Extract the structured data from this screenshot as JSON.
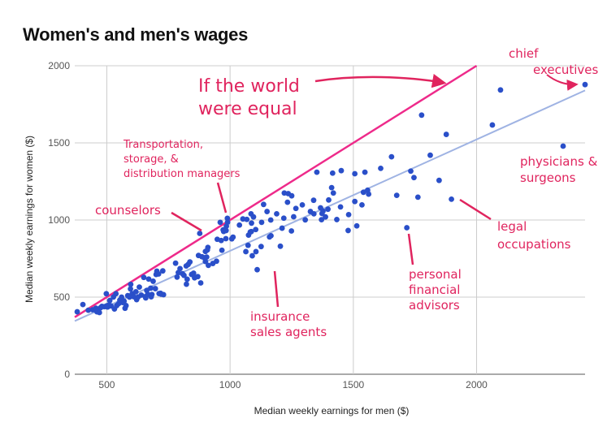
{
  "chart_data": {
    "type": "scatter",
    "title": "Women's and men's wages",
    "xlabel": "Median weekly earnings for men ($)",
    "ylabel": "Median weekly earnings for women ($)",
    "xlim": [
      370,
      2440
    ],
    "ylim": [
      0,
      2000
    ],
    "x_ticks": [
      "500",
      "1000",
      "1500",
      "2000"
    ],
    "y_ticks": [
      "0",
      "500",
      "1000",
      "1500",
      "2000"
    ],
    "grid": true,
    "equal_line": {
      "x": [
        370,
        2000
      ],
      "y": [
        370,
        2000
      ]
    },
    "trend_line": {
      "x": [
        370,
        2440
      ],
      "y": [
        345,
        1840
      ]
    },
    "series": [
      {
        "name": "",
        "color": "#2a4fc9",
        "points": [
          [
            380,
            405
          ],
          [
            403,
            452
          ],
          [
            425,
            415
          ],
          [
            443,
            418
          ],
          [
            456,
            428
          ],
          [
            460,
            405
          ],
          [
            463,
            418
          ],
          [
            470,
            400
          ],
          [
            475,
            432
          ],
          [
            480,
            440
          ],
          [
            490,
            438
          ],
          [
            498,
            522
          ],
          [
            500,
            444
          ],
          [
            503,
            436
          ],
          [
            509,
            449
          ],
          [
            512,
            478
          ],
          [
            517,
            443
          ],
          [
            527,
            501
          ],
          [
            531,
            423
          ],
          [
            537,
            522
          ],
          [
            540,
            445
          ],
          [
            548,
            458
          ],
          [
            553,
            481
          ],
          [
            557,
            470
          ],
          [
            560,
            500
          ],
          [
            564,
            465
          ],
          [
            570,
            474
          ],
          [
            574,
            428
          ],
          [
            578,
            445
          ],
          [
            585,
            510
          ],
          [
            592,
            500
          ],
          [
            596,
            553
          ],
          [
            597,
            583
          ],
          [
            603,
            522
          ],
          [
            609,
            503
          ],
          [
            618,
            535
          ],
          [
            621,
            484
          ],
          [
            627,
            501
          ],
          [
            632,
            565
          ],
          [
            640,
            513
          ],
          [
            650,
            628
          ],
          [
            656,
            503
          ],
          [
            658,
            495
          ],
          [
            662,
            543
          ],
          [
            666,
            518
          ],
          [
            670,
            617
          ],
          [
            678,
            558
          ],
          [
            680,
            502
          ],
          [
            683,
            517
          ],
          [
            688,
            603
          ],
          [
            697,
            555
          ],
          [
            700,
            647
          ],
          [
            703,
            668
          ],
          [
            710,
            650
          ],
          [
            712,
            523
          ],
          [
            718,
            525
          ],
          [
            720,
            519
          ],
          [
            727,
            670
          ],
          [
            730,
            516
          ],
          [
            779,
            720
          ],
          [
            785,
            630
          ],
          [
            790,
            659
          ],
          [
            797,
            685
          ],
          [
            807,
            652
          ],
          [
            813,
            641
          ],
          [
            822,
            702
          ],
          [
            823,
            584
          ],
          [
            826,
            616
          ],
          [
            830,
            712
          ],
          [
            837,
            728
          ],
          [
            844,
            647
          ],
          [
            852,
            655
          ],
          [
            856,
            625
          ],
          [
            869,
            633
          ],
          [
            872,
            770
          ],
          [
            877,
            913
          ],
          [
            881,
            592
          ],
          [
            886,
            762
          ],
          [
            896,
            755
          ],
          [
            900,
            731
          ],
          [
            900,
            796
          ],
          [
            905,
            760
          ],
          [
            908,
            806
          ],
          [
            910,
            822
          ],
          [
            912,
            706
          ],
          [
            930,
            718
          ],
          [
            945,
            733
          ],
          [
            948,
            875
          ],
          [
            960,
            985
          ],
          [
            964,
            867
          ],
          [
            967,
            804
          ],
          [
            972,
            936
          ],
          [
            974,
            926
          ],
          [
            983,
            879
          ],
          [
            984,
            932
          ],
          [
            985,
            960
          ],
          [
            989,
            1011
          ],
          [
            990,
            986
          ],
          [
            1007,
            878
          ],
          [
            1012,
            889
          ],
          [
            1038,
            967
          ],
          [
            1052,
            1007
          ],
          [
            1064,
            795
          ],
          [
            1068,
            1004
          ],
          [
            1073,
            836
          ],
          [
            1075,
            902
          ],
          [
            1082,
            922
          ],
          [
            1085,
            1040
          ],
          [
            1086,
            925
          ],
          [
            1087,
            980
          ],
          [
            1090,
            768
          ],
          [
            1095,
            1020
          ],
          [
            1104,
            938
          ],
          [
            1105,
            795
          ],
          [
            1110,
            678
          ],
          [
            1126,
            828
          ],
          [
            1128,
            985
          ],
          [
            1136,
            1101
          ],
          [
            1150,
            1055
          ],
          [
            1160,
            890
          ],
          [
            1165,
            1000
          ],
          [
            1166,
            898
          ],
          [
            1189,
            1040
          ],
          [
            1204,
            830
          ],
          [
            1211,
            947
          ],
          [
            1218,
            1012
          ],
          [
            1220,
            1175
          ],
          [
            1233,
            1115
          ],
          [
            1236,
            1171
          ],
          [
            1249,
            929
          ],
          [
            1250,
            1157
          ],
          [
            1258,
            1021
          ],
          [
            1267,
            1075
          ],
          [
            1293,
            1098
          ],
          [
            1305,
            1001
          ],
          [
            1326,
            1055
          ],
          [
            1339,
            1128
          ],
          [
            1340,
            1040
          ],
          [
            1352,
            1310
          ],
          [
            1367,
            1079
          ],
          [
            1371,
            1002
          ],
          [
            1373,
            1042
          ],
          [
            1377,
            1058
          ],
          [
            1387,
            1020
          ],
          [
            1397,
            1070
          ],
          [
            1400,
            1130
          ],
          [
            1412,
            1210
          ],
          [
            1416,
            1304
          ],
          [
            1419,
            1175
          ],
          [
            1433,
            1003
          ],
          [
            1448,
            1085
          ],
          [
            1451,
            1320
          ],
          [
            1479,
            932
          ],
          [
            1481,
            1035
          ],
          [
            1506,
            1120
          ],
          [
            1506,
            1300
          ],
          [
            1514,
            962
          ],
          [
            1535,
            1098
          ],
          [
            1541,
            1180
          ],
          [
            1547,
            1310
          ],
          [
            1558,
            1193
          ],
          [
            1562,
            1168
          ],
          [
            1611,
            1335
          ],
          [
            1655,
            1410
          ],
          [
            1676,
            1160
          ],
          [
            1717,
            950
          ],
          [
            1733,
            1317
          ],
          [
            1746,
            1275
          ],
          [
            1762,
            1148
          ],
          [
            1777,
            1680
          ],
          [
            1812,
            1420
          ],
          [
            1848,
            1257
          ],
          [
            1877,
            1555
          ],
          [
            1898,
            1135
          ],
          [
            2064,
            1616
          ],
          [
            2097,
            1843
          ],
          [
            2351,
            1479
          ],
          [
            2440,
            1878
          ]
        ]
      }
    ],
    "annotations": {
      "equal": "If the world were equal",
      "chief": "chief executives",
      "physicians": "physicians & surgeons",
      "transport": "Transportation, storage, & distribution managers",
      "counselors": "counselors",
      "legal": "legal occupations",
      "financial": "personal financial advisors",
      "insurance": "insurance sales agents"
    }
  }
}
